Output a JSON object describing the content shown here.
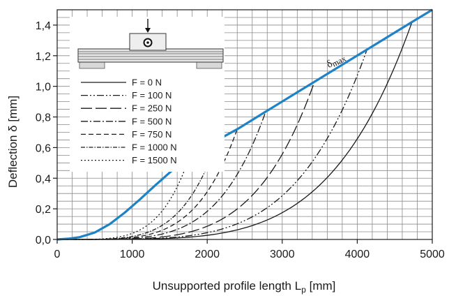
{
  "chart_data": {
    "type": "line",
    "xlabel": "Unsupported profile length L",
    "xlabel_sub": "p",
    "xlabel_unit": "[mm]",
    "ylabel": "Deflection δ [mm]",
    "xlim": [
      0,
      5000
    ],
    "ylim": [
      0,
      1.5
    ],
    "x_ticks": [
      0,
      1000,
      2000,
      3000,
      4000,
      5000
    ],
    "x_tick_labels": [
      "0",
      "1000",
      "2000",
      "3000",
      "4000",
      "5000"
    ],
    "y_ticks": [
      0,
      0.2,
      0.4,
      0.6,
      0.8,
      1.0,
      1.2,
      1.4
    ],
    "y_tick_labels": [
      "0,0",
      "0,2",
      "0,4",
      "0,6",
      "0,8",
      "1,0",
      "1,2",
      "1,4"
    ],
    "grid": true,
    "legend_position": "top-left",
    "annotation": {
      "text": "δ",
      "sub": "max",
      "x": 3620,
      "y": 1.12
    },
    "delta_max": {
      "name": "δmax",
      "color": "#1e82c6",
      "x": [
        0,
        150,
        300,
        500,
        700,
        900,
        1100,
        1300,
        1450,
        1600,
        2140,
        2400,
        2780,
        3430,
        4130,
        4730,
        5000
      ],
      "y": [
        0,
        0.005,
        0.015,
        0.045,
        0.1,
        0.175,
        0.26,
        0.35,
        0.415,
        0.48,
        0.65,
        0.72,
        0.835,
        1.03,
        1.24,
        1.42,
        1.5
      ]
    },
    "series": [
      {
        "name": "F = 0 N",
        "dash": "solid",
        "x_end": 4730,
        "y_end": 1.42
      },
      {
        "name": "F = 100 N",
        "dash": "dashdotdot",
        "x_end": 4130,
        "y_end": 1.24
      },
      {
        "name": "F = 250 N",
        "dash": "longdash",
        "x_end": 3430,
        "y_end": 1.03
      },
      {
        "name": "F = 500 N",
        "dash": "dashdot",
        "x_end": 2780,
        "y_end": 0.835
      },
      {
        "name": "F = 750 N",
        "dash": "dashed",
        "x_end": 2400,
        "y_end": 0.72
      },
      {
        "name": "F = 1000 N",
        "dash": "dashdotdense",
        "x_end": 2140,
        "y_end": 0.65
      },
      {
        "name": "F = 1500 N",
        "dash": "dotted",
        "x_end": 1750,
        "y_end": 0.52
      }
    ]
  }
}
